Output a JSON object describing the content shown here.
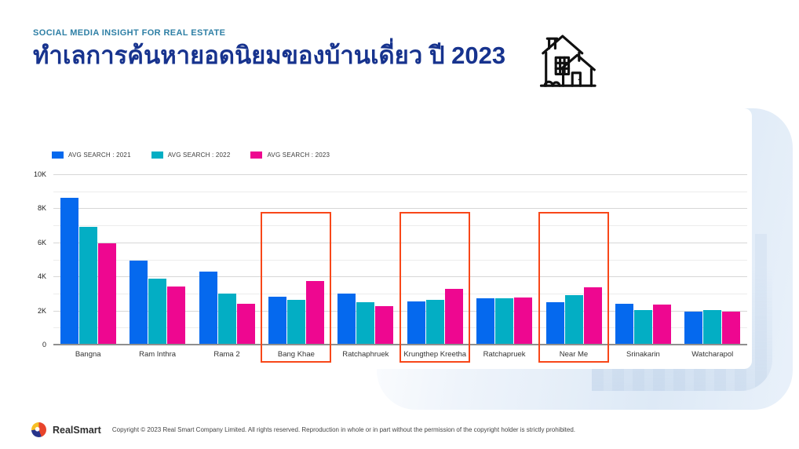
{
  "header": {
    "eyebrow": "SOCIAL MEDIA INSIGHT FOR REAL ESTATE",
    "title": "ทำเลการค้นหายอดนิยมของบ้านเดี่ยว ปี 2023"
  },
  "chart_data": {
    "type": "bar",
    "title": "",
    "xlabel": "",
    "ylabel": "",
    "categories": [
      "Bangna",
      "Ram Inthra",
      "Rama 2",
      "Bang Khae",
      "Ratchaphruek",
      "Krungthep Kreetha",
      "Ratchapruek",
      "Near Me",
      "Srinakarin",
      "Watcharapol"
    ],
    "series": [
      {
        "name": "AVG SEARCH : 2021",
        "color": "#0569EE",
        "values": [
          8600,
          4950,
          4300,
          2800,
          3000,
          2550,
          2700,
          2500,
          2400,
          1950
        ]
      },
      {
        "name": "AVG SEARCH : 2022",
        "color": "#03AEC4",
        "values": [
          6900,
          3850,
          3000,
          2650,
          2500,
          2650,
          2700,
          2900,
          2050,
          2050
        ]
      },
      {
        "name": "AVG SEARCH : 2023",
        "color": "#EE0790",
        "values": [
          5950,
          3400,
          2400,
          3750,
          2250,
          3250,
          2750,
          3350,
          2350,
          1950
        ]
      }
    ],
    "ylim": [
      0,
      10000
    ],
    "yticks": [
      {
        "value": 0,
        "label": "0"
      },
      {
        "value": 2000,
        "label": "2K"
      },
      {
        "value": 4000,
        "label": "4K"
      },
      {
        "value": 6000,
        "label": "6K"
      },
      {
        "value": 8000,
        "label": "8K"
      },
      {
        "value": 10000,
        "label": "10K"
      }
    ],
    "minor_grid_interval": 1000,
    "grid": true,
    "legend_position": "top-left",
    "highlighted_categories": [
      "Bang Khae",
      "Krungthep Kreetha",
      "Near Me"
    ],
    "highlight_color": "#F84719"
  },
  "footer": {
    "brand": "RealSmart",
    "copyright": "Copyright © 2023 Real Smart Company Limited. All rights reserved. Reproduction in whole or in part without the permission of the copyright holder is strictly prohibited."
  },
  "colors": {
    "eyebrow_text": "#2E7FA5",
    "title_text": "#17338E",
    "bar_2021": "#0569EE",
    "bar_2022": "#03AEC4",
    "bar_2023": "#EE0790",
    "highlight": "#F84719",
    "deco_background": "#DDE9F6"
  }
}
